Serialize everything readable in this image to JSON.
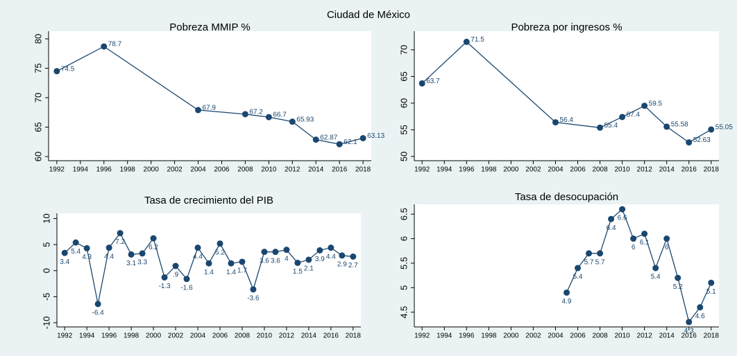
{
  "title": "Ciudad de México",
  "chart_data": [
    {
      "type": "line",
      "title": "Pobreza MMIP %",
      "color": "#1a476f",
      "x": [
        1992,
        1996,
        2004,
        2008,
        2010,
        2012,
        2014,
        2016,
        2018
      ],
      "values": [
        74.5,
        78.7,
        67.9,
        67.2,
        66.7,
        65.93,
        62.87,
        62.1,
        63.13
      ],
      "xlim": [
        1991.3,
        2018.7
      ],
      "xticks": [
        1992,
        1994,
        1996,
        1998,
        2000,
        2002,
        2004,
        2006,
        2008,
        2010,
        2012,
        2014,
        2016,
        2018
      ],
      "ylim": [
        59.3,
        81.3
      ],
      "yticks": [
        60,
        65,
        70,
        75,
        80
      ]
    },
    {
      "type": "line",
      "title": "Pobreza por ingresos %",
      "color": "#1a476f",
      "x": [
        1992,
        1996,
        2004,
        2008,
        2010,
        2012,
        2014,
        2016,
        2018
      ],
      "values": [
        63.7,
        71.5,
        56.4,
        55.4,
        57.4,
        59.5,
        55.58,
        52.63,
        55.05
      ],
      "xlim": [
        1991.3,
        2018.7
      ],
      "xticks": [
        1992,
        1994,
        1996,
        1998,
        2000,
        2002,
        2004,
        2006,
        2008,
        2010,
        2012,
        2014,
        2016,
        2018
      ],
      "ylim": [
        49.2,
        73.5
      ],
      "yticks": [
        50,
        55,
        60,
        65,
        70
      ]
    },
    {
      "type": "line",
      "title": "Tasa de crecimiento del PIB",
      "color": "#1a476f",
      "x": [
        1992,
        1993,
        1994,
        1995,
        1996,
        1997,
        1998,
        1999,
        2000,
        2001,
        2002,
        2003,
        2004,
        2005,
        2006,
        2007,
        2008,
        2009,
        2010,
        2011,
        2012,
        2013,
        2014,
        2015,
        2016,
        2017,
        2018
      ],
      "values": [
        3.4,
        5.4,
        4.3,
        -6.4,
        4.4,
        7.2,
        3.1,
        3.3,
        6.2,
        -1.3,
        0.9,
        -1.6,
        4.4,
        1.4,
        5.2,
        1.4,
        1.7,
        -3.6,
        3.6,
        3.6,
        4,
        1.5,
        2.1,
        3.9,
        4.4,
        2.9,
        2.7
      ],
      "value_labels": [
        "3.4",
        "5.4",
        "4.3",
        "-6.4",
        "4.4",
        "7.2",
        "3.1",
        "3.3",
        "6.2",
        "-1.3",
        ".9",
        "-1.6",
        "4.4",
        "1.4",
        "5.2",
        "1.4",
        "1.7",
        "-3.6",
        "3.6",
        "3.6",
        "4",
        "1.5",
        "2.1",
        "3.9",
        "4.4",
        "2.9",
        "2.7"
      ],
      "xlim": [
        1991.3,
        2018.7
      ],
      "xticks": [
        1992,
        1994,
        1996,
        1998,
        2000,
        2002,
        2004,
        2006,
        2008,
        2010,
        2012,
        2014,
        2016,
        2018
      ],
      "ylim": [
        -10.8,
        11
      ],
      "yticks": [
        -10,
        -5,
        0,
        5,
        10
      ]
    },
    {
      "type": "line",
      "title": "Tasa de desocupación",
      "color": "#1a476f",
      "x": [
        2005,
        2006,
        2007,
        2008,
        2009,
        2010,
        2011,
        2012,
        2013,
        2014,
        2015,
        2016,
        2017,
        2018
      ],
      "values": [
        4.9,
        5.4,
        5.7,
        5.7,
        6.4,
        6.6,
        6,
        6.1,
        5.4,
        6,
        5.2,
        4.3,
        4.6,
        5.1
      ],
      "xlim": [
        1991.3,
        2018.7
      ],
      "xticks": [
        1992,
        1994,
        1996,
        1998,
        2000,
        2002,
        2004,
        2006,
        2008,
        2010,
        2012,
        2014,
        2016,
        2018
      ],
      "ylim": [
        4.2,
        6.7
      ],
      "yticks": [
        4.5,
        5,
        5.5,
        6,
        6.5
      ]
    }
  ]
}
